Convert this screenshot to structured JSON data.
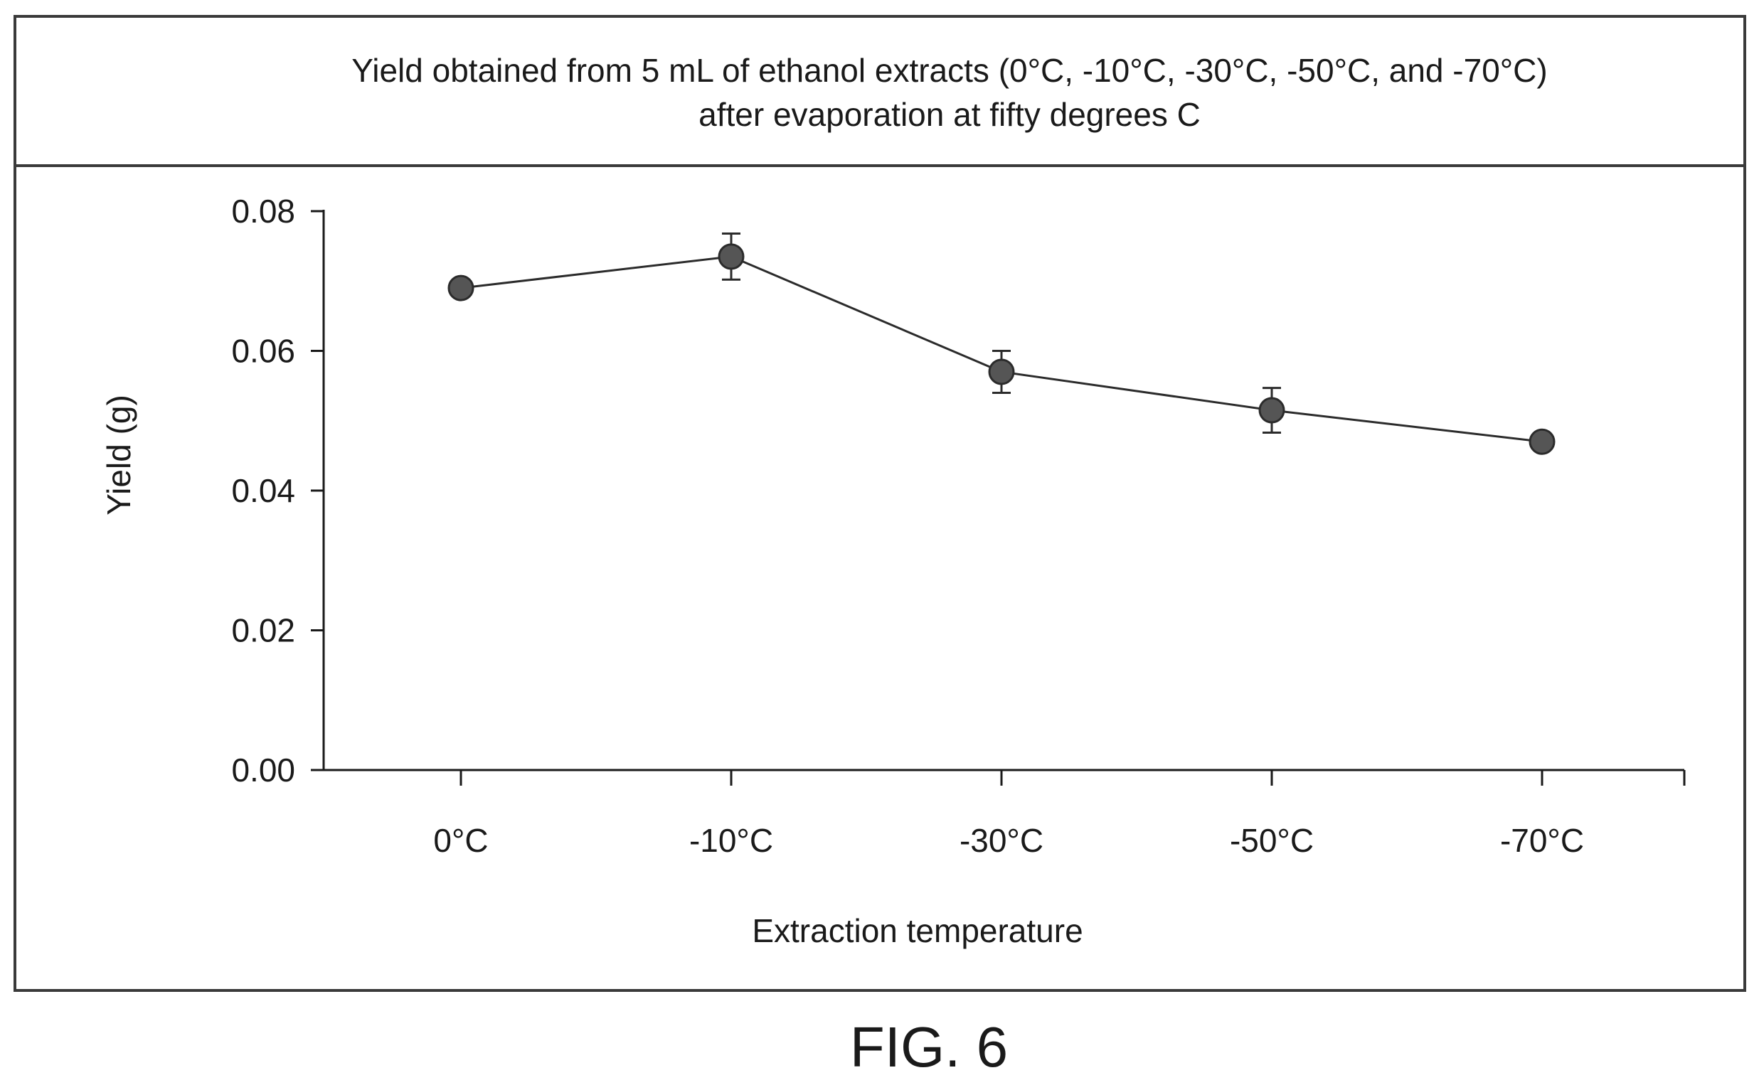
{
  "chart_data": {
    "type": "line",
    "title_line1": "Yield obtained from 5 mL of ethanol extracts (0°C, -10°C, -30°C, -50°C, and -70°C)",
    "title_line2": "after evaporation at fifty degrees C",
    "xlabel": "Extraction temperature",
    "ylabel": "Yield (g)",
    "categories": [
      "0°C",
      "-10°C",
      "-30°C",
      "-50°C",
      "-70°C"
    ],
    "series": [
      {
        "values": [
          0.069,
          0.0735,
          0.057,
          0.0515,
          0.047
        ],
        "errors": [
          0,
          0.0033,
          0.003,
          0.0032,
          0
        ]
      }
    ],
    "ylim": [
      0,
      0.08
    ],
    "yticks": [
      "0.00",
      "0.02",
      "0.04",
      "0.06",
      "0.08"
    ],
    "ytick_values": [
      0,
      0.02,
      0.04,
      0.06,
      0.08
    ],
    "grid": false,
    "marker": "filled-circle",
    "colors": {
      "line": "#2b2b2b",
      "marker": "#555555",
      "axis": "#1a1a1a",
      "frame": "#3a3a3a"
    }
  },
  "figure_label": "FIG. 6"
}
